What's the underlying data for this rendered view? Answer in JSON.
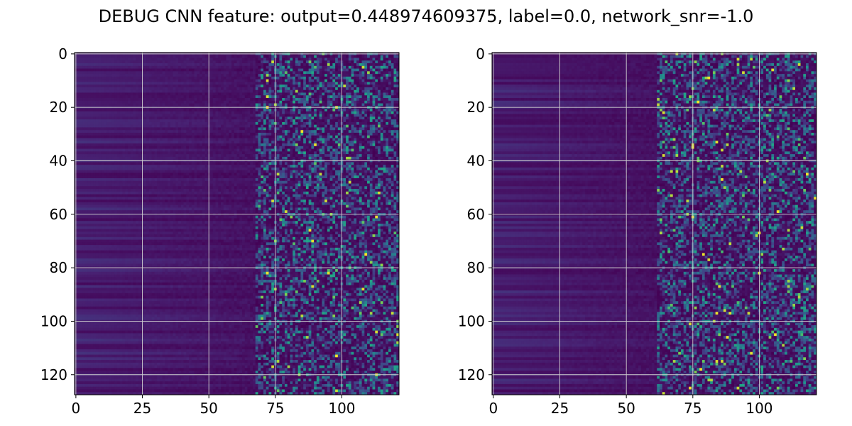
{
  "figure": {
    "suptitle": "DEBUG CNN feature: output=0.448974609375, label=0.0, network_snr=-1.0"
  },
  "chart_data": [
    {
      "type": "heatmap",
      "title": "",
      "xlabel": "",
      "ylabel": "",
      "rows": 128,
      "cols": 122,
      "xlim": [
        -0.5,
        121.5
      ],
      "ylim": [
        127.5,
        -0.5
      ],
      "y_inverted": true,
      "colormap": "viridis",
      "xticks": [
        0,
        25,
        50,
        75,
        100
      ],
      "xtick_labels": [
        "0",
        "25",
        "50",
        "75",
        "100"
      ],
      "yticks": [
        0,
        20,
        40,
        60,
        80,
        100,
        120
      ],
      "ytick_labels": [
        "0",
        "20",
        "40",
        "60",
        "80",
        "100",
        "120"
      ],
      "grid": true,
      "value_range": [
        0,
        1
      ],
      "pattern": "horizontal banding on left columns, sparse bright noise from column ~70 onward",
      "seed": 11
    },
    {
      "type": "heatmap",
      "title": "",
      "xlabel": "",
      "ylabel": "",
      "rows": 128,
      "cols": 122,
      "xlim": [
        -0.5,
        121.5
      ],
      "ylim": [
        127.5,
        -0.5
      ],
      "y_inverted": true,
      "colormap": "viridis",
      "xticks": [
        0,
        25,
        50,
        75,
        100
      ],
      "xtick_labels": [
        "0",
        "25",
        "50",
        "75",
        "100"
      ],
      "yticks": [
        0,
        20,
        40,
        60,
        80,
        100,
        120
      ],
      "ytick_labels": [
        "0",
        "20",
        "40",
        "60",
        "80",
        "100",
        "120"
      ],
      "grid": true,
      "value_range": [
        0,
        1
      ],
      "pattern": "horizontal banding on left columns, sparse bright noise from column ~65 onward",
      "seed": 29
    }
  ]
}
